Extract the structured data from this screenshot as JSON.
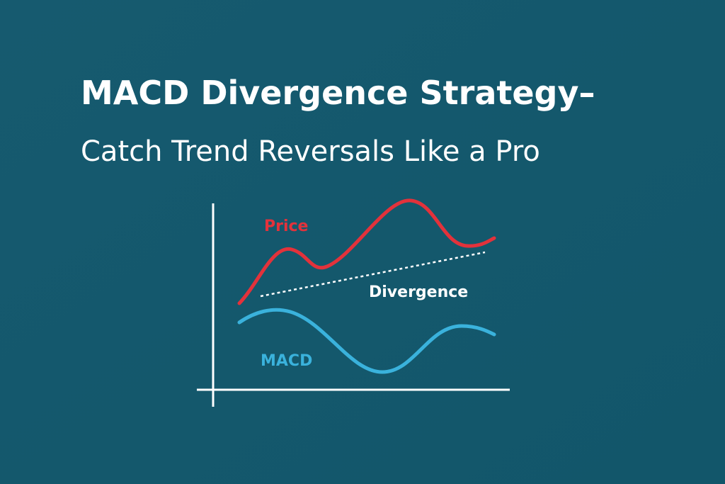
{
  "title": {
    "line1": "MACD Divergence Strategy–",
    "line2": "Catch Trend Reversals Like a Pro"
  },
  "illustration": {
    "price_label": "Price",
    "divergence_label": "Divergence",
    "macd_label": "MACD"
  }
}
